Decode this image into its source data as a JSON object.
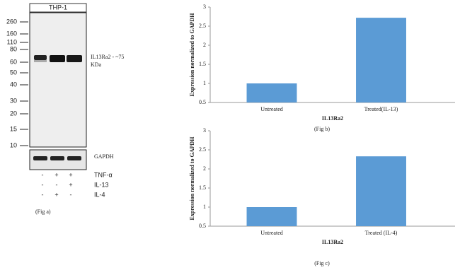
{
  "blot": {
    "title": "THP-1",
    "markers": [
      260,
      160,
      110,
      80,
      60,
      50,
      40,
      30,
      20,
      15,
      10
    ],
    "target_label": "IL13Ra2 - ~75",
    "target_unit": "KDa",
    "loading_control": "GAPDH",
    "treatments": [
      {
        "signs": [
          "-",
          "+",
          "+"
        ],
        "label": "TNF-α"
      },
      {
        "signs": [
          "-",
          "-",
          "+"
        ],
        "label": "IL-13"
      },
      {
        "signs": [
          "-",
          "+",
          "-"
        ],
        "label": "IL-4"
      }
    ],
    "caption": "(Fig a)"
  },
  "chart_data": [
    {
      "type": "bar",
      "categories": [
        "Untreated",
        "Treated(IL-13)"
      ],
      "values": [
        1,
        2.72
      ],
      "color": "#5b9bd5",
      "ylim": [
        0.5,
        3
      ],
      "yticks": [
        0.5,
        1,
        1.5,
        2,
        2.5,
        3
      ],
      "x_label": "IL13Ra2",
      "y_label": "Expression  normalized to GAPDH",
      "caption": "(Fig b)"
    },
    {
      "type": "bar",
      "categories": [
        "Untreated",
        "Treated (IL-4)"
      ],
      "values": [
        1,
        2.33
      ],
      "color": "#5b9bd5",
      "ylim": [
        0.5,
        3
      ],
      "yticks": [
        0.5,
        1,
        1.5,
        2,
        2.5,
        3
      ],
      "x_label": "IL13Ra2",
      "y_label": "Expression  normalized to GAPDH",
      "caption": "(Fig c)"
    }
  ]
}
